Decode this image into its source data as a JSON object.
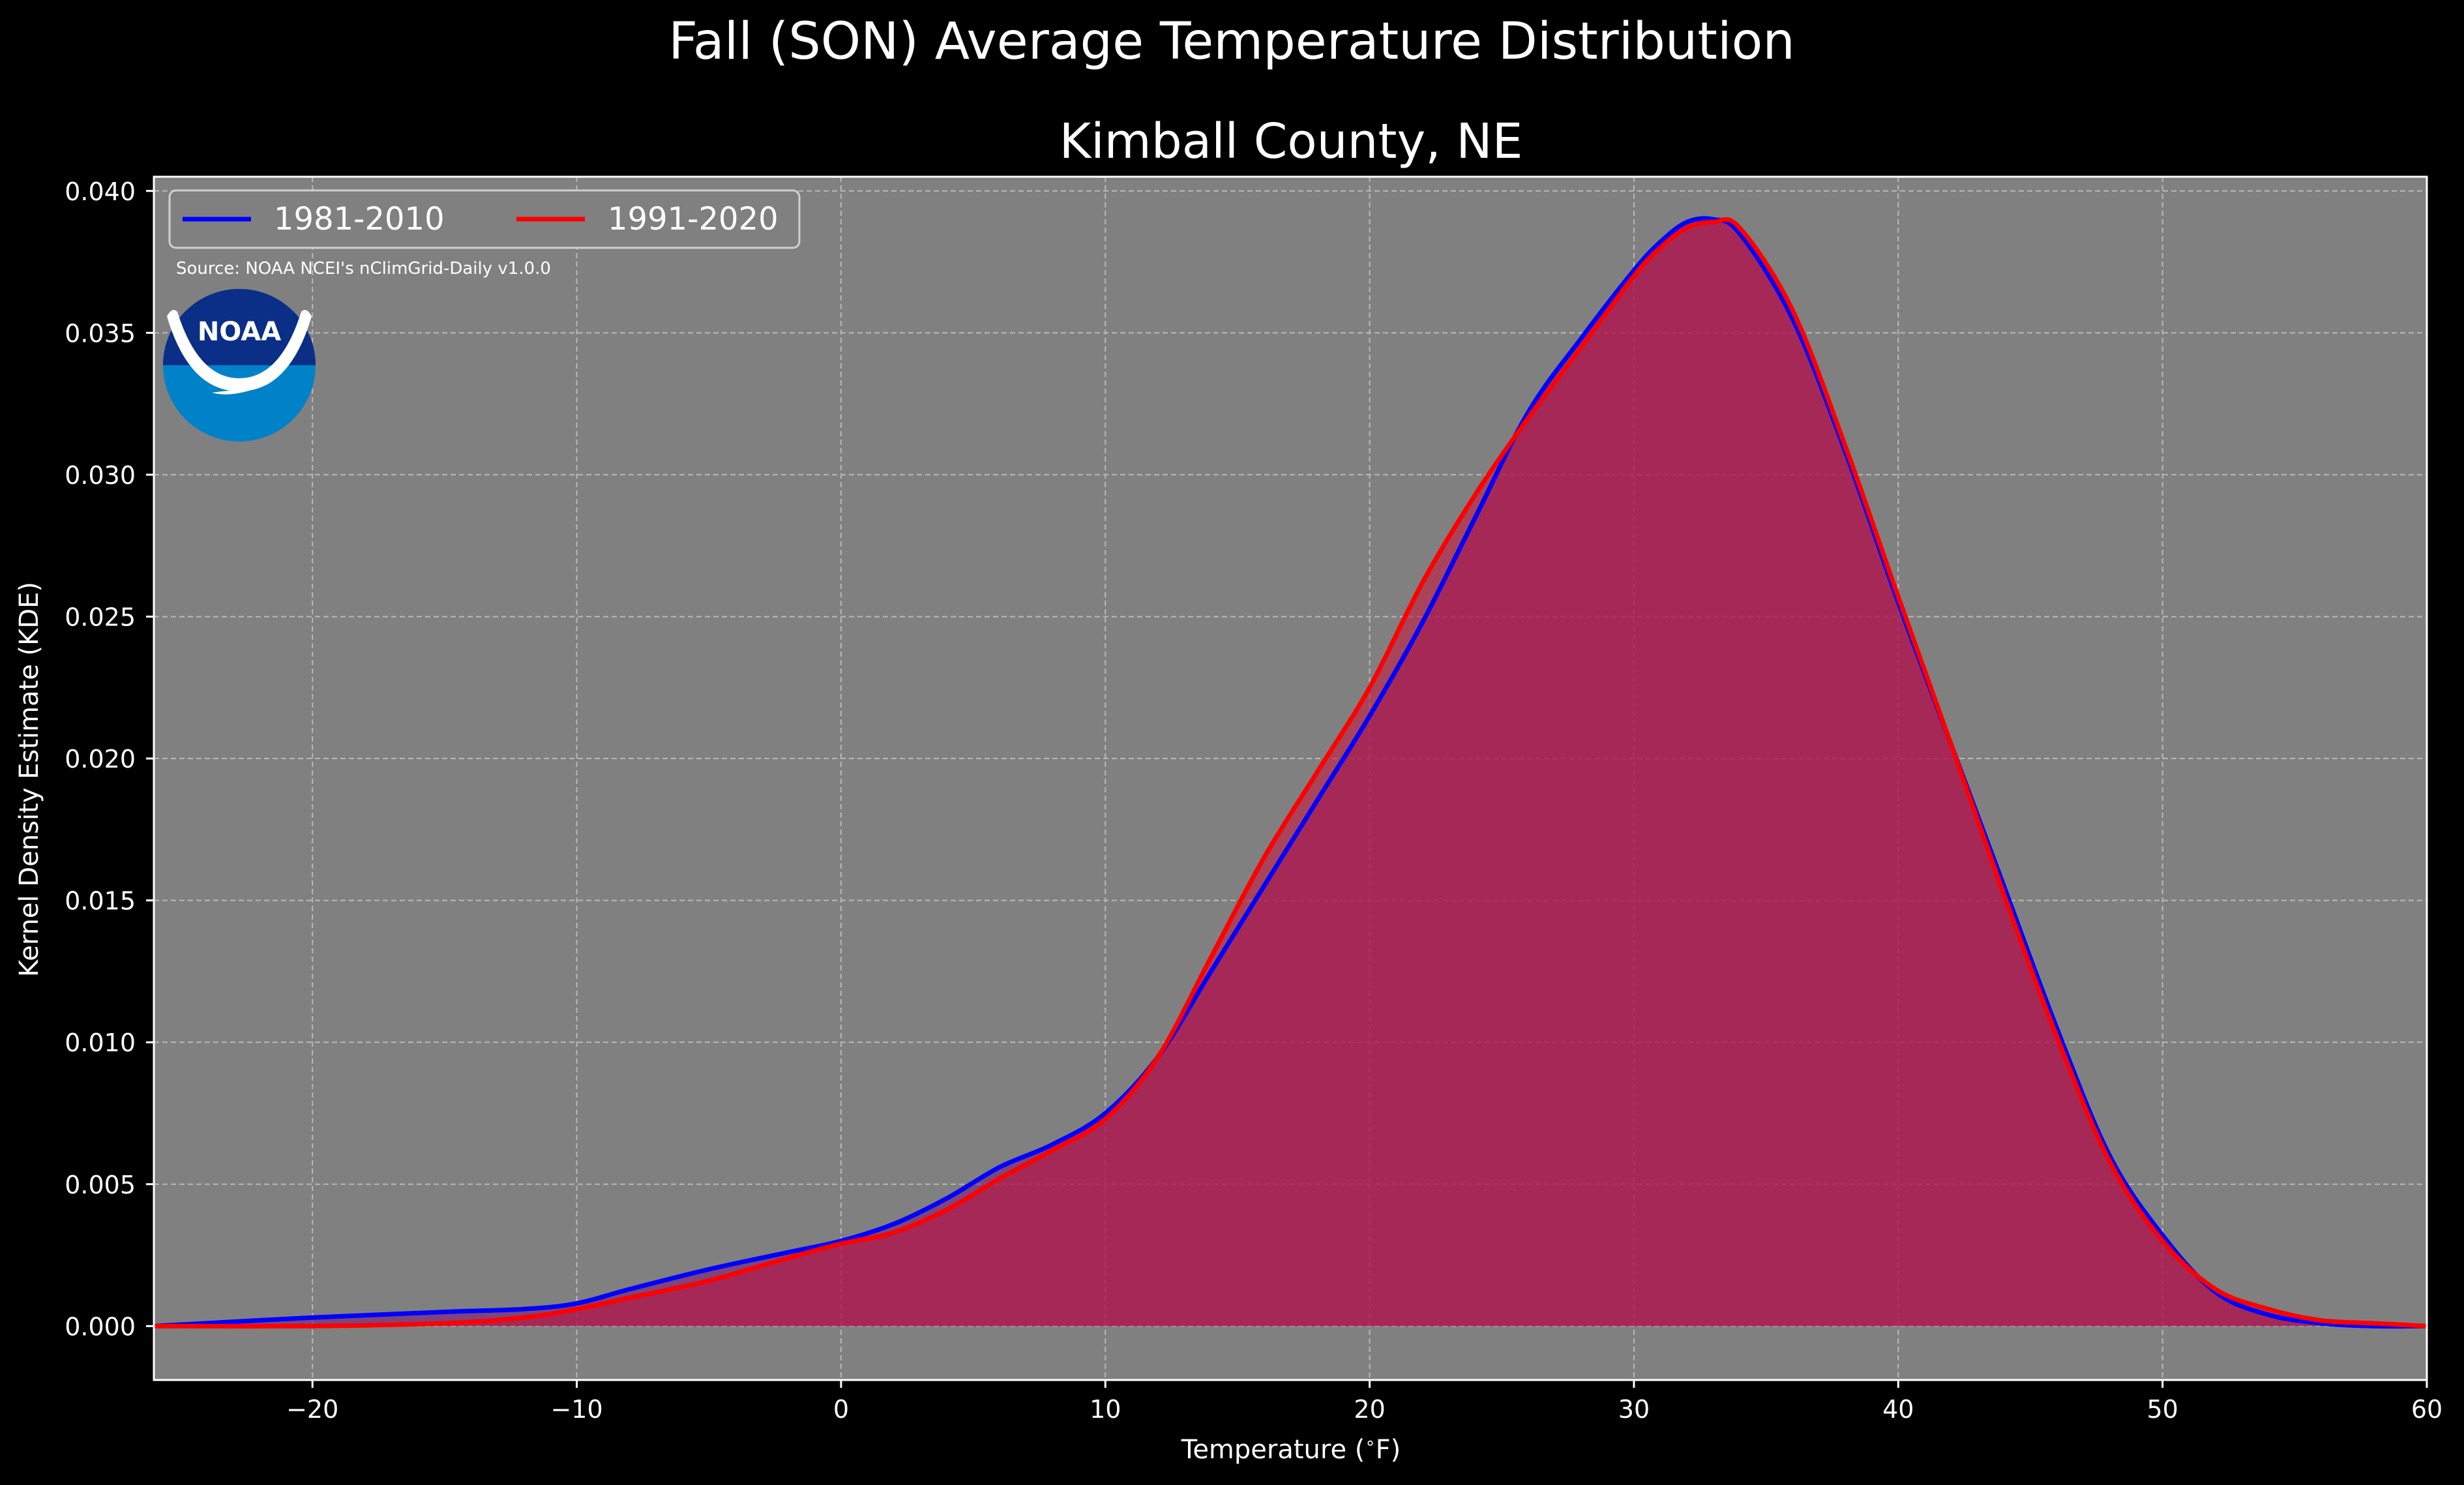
{
  "title": "Fall (SON) Average Temperature Distribution",
  "subtitle": "Kimball County, NE",
  "source": "Source: NOAA NCEI's nClimGrid-Daily v1.0.0",
  "logo_text": "NOAA",
  "colors": {
    "background": "#000000",
    "plot_bg": "#808080",
    "series_1981": "#0000ff",
    "series_1991": "#ff0000",
    "fill_overlap": "#9e1c5b",
    "logo_dark": "#0b2f86",
    "logo_light": "#0082c9"
  },
  "chart_data": {
    "type": "area",
    "title": "Fall (SON) Average Temperature Distribution",
    "subtitle": "Kimball County, NE",
    "xlabel": "Temperature ($^\\circ$F)",
    "ylabel": "Kernel Density Estimate (KDE)",
    "xlim": [
      -26,
      60
    ],
    "ylim": [
      -0.0019,
      0.0405
    ],
    "xticks": [
      -20,
      -10,
      0,
      10,
      20,
      30,
      40,
      50,
      60
    ],
    "xtick_labels": [
      "−20",
      "−10",
      "0",
      "10",
      "20",
      "30",
      "40",
      "50",
      "60"
    ],
    "yticks": [
      0.0,
      0.005,
      0.01,
      0.015,
      0.02,
      0.025,
      0.03,
      0.035,
      0.04
    ],
    "ytick_labels": [
      "0.000",
      "0.005",
      "0.010",
      "0.015",
      "0.020",
      "0.025",
      "0.030",
      "0.035",
      "0.040"
    ],
    "grid": true,
    "legend_position": "top-left",
    "series": [
      {
        "name": "1981-2010",
        "color": "#0000ff",
        "x": [
          -26,
          -20,
          -15,
          -12,
          -10,
          -8,
          -5,
          -2,
          0,
          2,
          4,
          6,
          8,
          10,
          12,
          14,
          16,
          18,
          20,
          22,
          24,
          26,
          28,
          30,
          31,
          32,
          33,
          34,
          36,
          38,
          40,
          42,
          44,
          46,
          48,
          50,
          52,
          54,
          56,
          58,
          60
        ],
        "y": [
          0.0,
          0.0003,
          0.0005,
          0.0006,
          0.0008,
          0.0013,
          0.002,
          0.0026,
          0.003,
          0.0036,
          0.0045,
          0.0056,
          0.0064,
          0.0075,
          0.0095,
          0.0125,
          0.0155,
          0.0185,
          0.0215,
          0.0248,
          0.0285,
          0.0322,
          0.0348,
          0.0372,
          0.0382,
          0.0389,
          0.039,
          0.0385,
          0.0355,
          0.0308,
          0.0255,
          0.0205,
          0.0155,
          0.0105,
          0.006,
          0.0032,
          0.0012,
          0.0004,
          0.0001,
          0.0,
          0.0
        ]
      },
      {
        "name": "1991-2020",
        "color": "#ff0000",
        "x": [
          -26,
          -20,
          -15,
          -12,
          -10,
          -8,
          -5,
          -2,
          0,
          2,
          4,
          6,
          8,
          10,
          12,
          14,
          16,
          18,
          20,
          22,
          24,
          26,
          28,
          30,
          31,
          32,
          33,
          34,
          36,
          38,
          40,
          42,
          44,
          46,
          48,
          50,
          52,
          54,
          56,
          58,
          60
        ],
        "y": [
          0.0,
          0.0,
          0.0001,
          0.0003,
          0.0006,
          0.001,
          0.0016,
          0.0024,
          0.0029,
          0.0033,
          0.0041,
          0.0052,
          0.0062,
          0.0073,
          0.0095,
          0.013,
          0.0165,
          0.0195,
          0.0225,
          0.0262,
          0.0293,
          0.032,
          0.0345,
          0.037,
          0.038,
          0.0387,
          0.0389,
          0.0387,
          0.0358,
          0.031,
          0.0257,
          0.0205,
          0.0152,
          0.0102,
          0.0058,
          0.003,
          0.0013,
          0.0006,
          0.0002,
          0.0001,
          0.0
        ]
      }
    ]
  }
}
